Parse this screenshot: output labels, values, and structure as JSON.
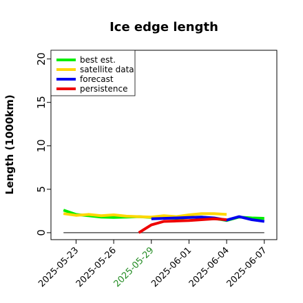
{
  "chart_data": {
    "type": "line",
    "title": "Ice edge length",
    "xlabel": "",
    "ylabel": "Length (1000km)",
    "ylim": [
      -0.8,
      21
    ],
    "yticks": [
      0,
      5,
      10,
      15,
      20
    ],
    "xlim": [
      "2025-05-21",
      "2025-06-08"
    ],
    "xticks": [
      {
        "label": "2025-05-23",
        "date": "2025-05-23",
        "color": "#000000"
      },
      {
        "label": "2025-05-26",
        "date": "2025-05-26",
        "color": "#000000"
      },
      {
        "label": "2025-05-29",
        "date": "2025-05-29",
        "color": "#228B22"
      },
      {
        "label": "2025-06-01",
        "date": "2025-06-01",
        "color": "#000000"
      },
      {
        "label": "2025-06-04",
        "date": "2025-06-04",
        "color": "#000000"
      },
      {
        "label": "2025-06-07",
        "date": "2025-06-07",
        "color": "#000000"
      }
    ],
    "grid": false,
    "legend_position": "top-left",
    "baseline": {
      "y": 0,
      "x_start": "2025-05-22",
      "x_end": "2025-06-07",
      "color": "#333333"
    },
    "series": [
      {
        "name": "best est.",
        "color": "#00ee00",
        "x": [
          "2025-05-22",
          "2025-05-23",
          "2025-05-24",
          "2025-05-25",
          "2025-05-26",
          "2025-05-27",
          "2025-05-28",
          "2025-05-29",
          "2025-05-30",
          "2025-05-31",
          "2025-06-01",
          "2025-06-02",
          "2025-06-03",
          "2025-06-04",
          "2025-06-05",
          "2025-06-06",
          "2025-06-07"
        ],
        "values": [
          2.6,
          2.1,
          1.95,
          1.8,
          1.75,
          1.8,
          1.85,
          1.75,
          1.7,
          1.65,
          1.75,
          1.8,
          1.65,
          1.4,
          1.8,
          1.7,
          1.65
        ]
      },
      {
        "name": "satellite data",
        "color": "#ffd700",
        "x": [
          "2025-05-22",
          "2025-05-23",
          "2025-05-24",
          "2025-05-25",
          "2025-05-26",
          "2025-05-27",
          "2025-05-28",
          "2025-05-29",
          "2025-05-30",
          "2025-05-31",
          "2025-06-01",
          "2025-06-02",
          "2025-06-03",
          "2025-06-04"
        ],
        "values": [
          2.2,
          2.0,
          2.1,
          1.95,
          2.05,
          1.9,
          1.85,
          1.8,
          1.95,
          1.85,
          2.05,
          2.2,
          2.2,
          2.1
        ]
      },
      {
        "name": "forecast",
        "color": "#0000ee",
        "x": [
          "2025-05-29",
          "2025-05-30",
          "2025-05-31",
          "2025-06-01",
          "2025-06-02",
          "2025-06-03",
          "2025-06-04",
          "2025-06-05",
          "2025-06-06",
          "2025-06-07"
        ],
        "values": [
          1.6,
          1.65,
          1.7,
          1.75,
          1.8,
          1.7,
          1.45,
          1.85,
          1.5,
          1.3
        ]
      },
      {
        "name": "persistence",
        "color": "#ee0000",
        "x": [
          "2025-05-28",
          "2025-05-29",
          "2025-05-30",
          "2025-05-31",
          "2025-06-01",
          "2025-06-02",
          "2025-06-03",
          "2025-06-04"
        ],
        "values": [
          0.0,
          0.9,
          1.3,
          1.35,
          1.4,
          1.5,
          1.6,
          1.5
        ]
      }
    ]
  }
}
